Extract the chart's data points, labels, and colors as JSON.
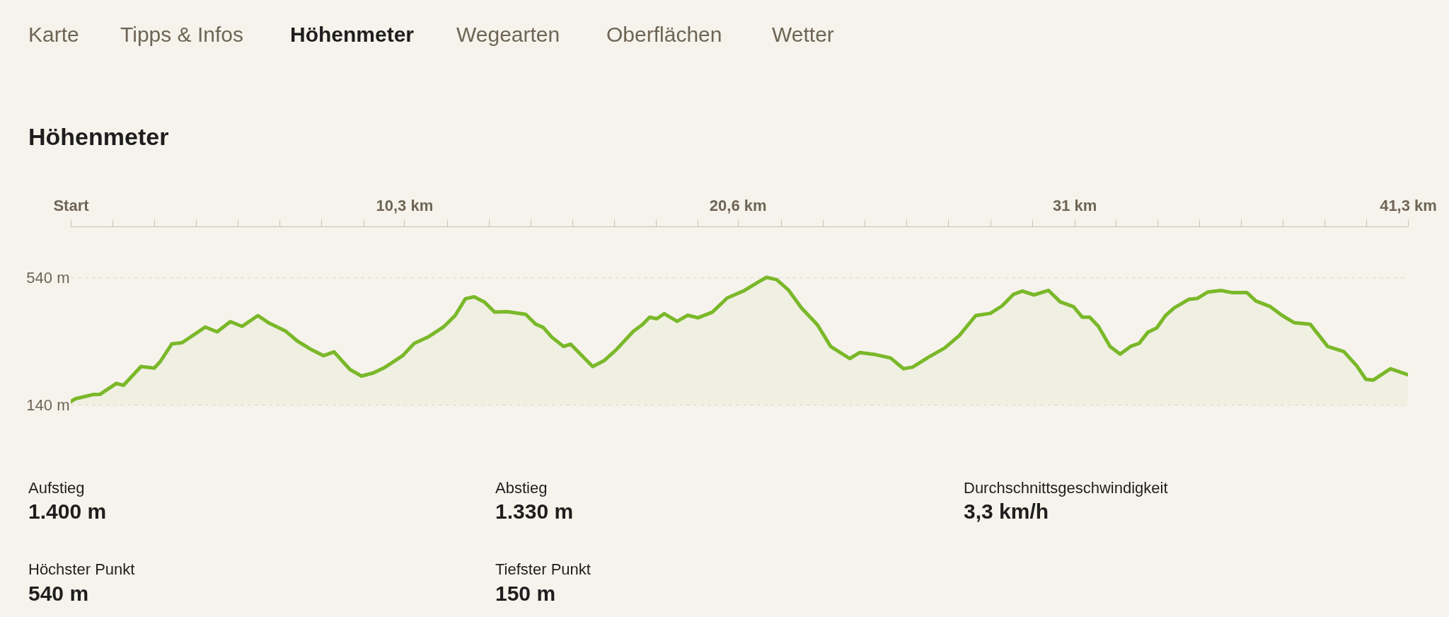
{
  "chart_data": {
    "type": "area",
    "title": "Höhenmeter",
    "x": [
      0,
      0.15,
      0.69,
      0.91,
      1.41,
      1.63,
      2.17,
      2.58,
      2.76,
      3.12,
      3.44,
      4.16,
      4.52,
      4.93,
      5.29,
      5.78,
      6.1,
      6.64,
      7.0,
      7.45,
      7.81,
      8.13,
      8.62,
      8.98,
      9.35,
      9.71,
      10.25,
      10.61,
      11.06,
      11.51,
      11.87,
      12.19,
      12.46,
      12.77,
      13.09,
      13.49,
      14.05,
      14.36,
      14.59,
      14.86,
      15.22,
      15.44,
      16.12,
      16.48,
      16.84,
      17.38,
      17.65,
      17.88,
      18.1,
      18.33,
      18.73,
      19.05,
      19.37,
      19.82,
      20.27,
      20.81,
      21.26,
      21.49,
      21.8,
      22.16,
      22.57,
      23.06,
      23.47,
      24.06,
      24.37,
      24.87,
      25.32,
      25.72,
      26.0,
      26.49,
      26.99,
      27.44,
      27.95,
      28.4,
      28.76,
      29.12,
      29.39,
      29.75,
      30.2,
      30.56,
      30.97,
      31.24,
      31.47,
      31.74,
      32.1,
      32.41,
      32.73,
      33.0,
      33.27,
      33.54,
      33.81,
      34.08,
      34.53,
      34.8,
      35.12,
      35.52,
      35.88,
      36.33,
      36.6,
      37.05,
      37.42,
      37.78,
      38.28,
      38.82,
      39.32,
      39.72,
      40.0,
      40.22,
      40.76,
      41.3
    ],
    "series": [
      {
        "color": "#7ab829",
        "values": [
          150,
          159,
          172,
          173,
          207,
          201,
          260,
          255,
          275,
          331,
          335,
          384,
          369,
          401,
          386,
          420,
          398,
          371,
          340,
          312,
          294,
          306,
          251,
          230,
          240,
          258,
          294,
          333,
          354,
          384,
          420,
          473,
          479,
          463,
          431,
          432,
          424,
          393,
          383,
          352,
          323,
          330,
          260,
          279,
          312,
          371,
          391,
          415,
          410,
          426,
          402,
          421,
          413,
          431,
          475,
          499,
          527,
          540,
          533,
          501,
          444,
          391,
          323,
          285,
          304,
          297,
          287,
          253,
          258,
          289,
          318,
          357,
          420,
          427,
          450,
          487,
          497,
          485,
          499,
          463,
          448,
          415,
          415,
          386,
          323,
          299,
          323,
          333,
          368,
          381,
          420,
          444,
          471,
          474,
          494,
          499,
          492,
          492,
          466,
          448,
          420,
          398,
          393,
          323,
          307,
          262,
          220,
          217,
          253,
          234
        ]
      }
    ],
    "xlim": [
      0,
      41.3
    ],
    "xticks": [
      {
        "value": 0,
        "label": "Start"
      },
      {
        "value": 1.29,
        "label": null
      },
      {
        "value": 2.58,
        "label": null
      },
      {
        "value": 3.87,
        "label": null
      },
      {
        "value": 5.16,
        "label": null
      },
      {
        "value": 6.45,
        "label": null
      },
      {
        "value": 7.74,
        "label": null
      },
      {
        "value": 9.04,
        "label": null
      },
      {
        "value": 10.3,
        "label": "10,3 km"
      },
      {
        "value": 11.62,
        "label": null
      },
      {
        "value": 12.91,
        "label": null
      },
      {
        "value": 14.2,
        "label": null
      },
      {
        "value": 15.49,
        "label": null
      },
      {
        "value": 16.78,
        "label": null
      },
      {
        "value": 18.07,
        "label": null
      },
      {
        "value": 19.36,
        "label": null
      },
      {
        "value": 20.6,
        "label": "20,6 km"
      },
      {
        "value": 21.94,
        "label": null
      },
      {
        "value": 23.23,
        "label": null
      },
      {
        "value": 24.52,
        "label": null
      },
      {
        "value": 25.81,
        "label": null
      },
      {
        "value": 27.1,
        "label": null
      },
      {
        "value": 28.4,
        "label": null
      },
      {
        "value": 29.69,
        "label": null
      },
      {
        "value": 31,
        "label": "31 km"
      },
      {
        "value": 32.27,
        "label": null
      },
      {
        "value": 33.56,
        "label": null
      },
      {
        "value": 34.85,
        "label": null
      },
      {
        "value": 36.14,
        "label": null
      },
      {
        "value": 37.43,
        "label": null
      },
      {
        "value": 38.72,
        "label": null
      },
      {
        "value": 40.01,
        "label": null
      },
      {
        "value": 41.3,
        "label": "41,3 km"
      }
    ],
    "ylim": [
      140,
      700
    ],
    "yticks": [
      {
        "value": 140,
        "label": "140 m"
      },
      {
        "value": 540,
        "label": "540 m"
      }
    ],
    "grid": "y",
    "annotations": [
      "Karte",
      "Tipps & Infos",
      "Höhenmeter",
      "Wegearten",
      "Oberflächen",
      "Wetter",
      "Aufstieg",
      "1.400 m",
      "Abstieg",
      "1.330 m",
      "Durchschnittsgeschwindigkeit",
      "3,3 km/h",
      "Höchster Punkt",
      "540 m",
      "Tiefster Punkt",
      "150 m"
    ]
  }
}
